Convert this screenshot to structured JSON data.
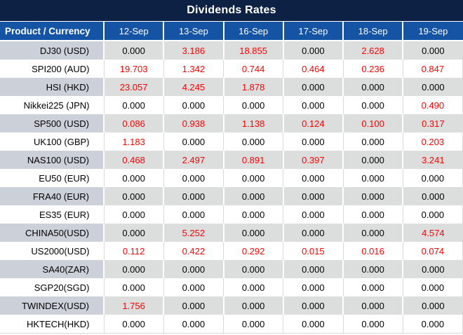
{
  "title": "Dividends Rates",
  "header": {
    "product_column": "Product / Currency"
  },
  "colors": {
    "title_bg": "#0c2144",
    "header_bg": "#1553a4",
    "header_text": "#ffffff",
    "alt_row_bg": "#dcdddd",
    "alt_label_bg": "#ccd1d9",
    "border_light": "#d9d9d9",
    "zero_value": "#000000",
    "nonzero_value": "#ff0000"
  },
  "value_format": {
    "decimals": 3,
    "nonzero_color_rule": "values not equal to 0 are shown in red"
  },
  "chart_data": {
    "type": "table",
    "title": "Dividends Rates",
    "categories": [
      "12-Sep",
      "13-Sep",
      "16-Sep",
      "17-Sep",
      "18-Sep",
      "19-Sep"
    ],
    "series": [
      {
        "name": "DJ30 (USD)",
        "values": [
          0.0,
          3.186,
          18.855,
          0.0,
          2.628,
          0.0
        ]
      },
      {
        "name": "SPI200 (AUD)",
        "values": [
          19.703,
          1.342,
          0.744,
          0.464,
          0.236,
          0.847
        ]
      },
      {
        "name": "HSI (HKD)",
        "values": [
          23.057,
          4.245,
          1.878,
          0.0,
          0.0,
          0.0
        ]
      },
      {
        "name": "Nikkei225 (JPN)",
        "values": [
          0.0,
          0.0,
          0.0,
          0.0,
          0.0,
          0.49
        ]
      },
      {
        "name": "SP500 (USD)",
        "values": [
          0.086,
          0.938,
          1.138,
          0.124,
          0.1,
          0.317
        ]
      },
      {
        "name": "UK100 (GBP)",
        "values": [
          1.183,
          0.0,
          0.0,
          0.0,
          0.0,
          0.203
        ]
      },
      {
        "name": "NAS100 (USD)",
        "values": [
          0.468,
          2.497,
          0.891,
          0.397,
          0.0,
          3.241
        ]
      },
      {
        "name": "EU50 (EUR)",
        "values": [
          0.0,
          0.0,
          0.0,
          0.0,
          0.0,
          0.0
        ]
      },
      {
        "name": "FRA40 (EUR)",
        "values": [
          0.0,
          0.0,
          0.0,
          0.0,
          0.0,
          0.0
        ]
      },
      {
        "name": "ES35 (EUR)",
        "values": [
          0.0,
          0.0,
          0.0,
          0.0,
          0.0,
          0.0
        ]
      },
      {
        "name": "CHINA50(USD)",
        "values": [
          0.0,
          5.252,
          0.0,
          0.0,
          0.0,
          4.574
        ]
      },
      {
        "name": "US2000(USD)",
        "values": [
          0.112,
          0.422,
          0.292,
          0.015,
          0.016,
          0.074
        ]
      },
      {
        "name": "SA40(ZAR)",
        "values": [
          0.0,
          0.0,
          0.0,
          0.0,
          0.0,
          0.0
        ]
      },
      {
        "name": "SGP20(SGD)",
        "values": [
          0.0,
          0.0,
          0.0,
          0.0,
          0.0,
          0.0
        ]
      },
      {
        "name": "TWINDEX(USD)",
        "values": [
          1.756,
          0.0,
          0.0,
          0.0,
          0.0,
          0.0
        ]
      },
      {
        "name": "HKTECH(HKD)",
        "values": [
          0.0,
          0.0,
          0.0,
          0.0,
          0.0,
          0.0
        ]
      }
    ]
  }
}
